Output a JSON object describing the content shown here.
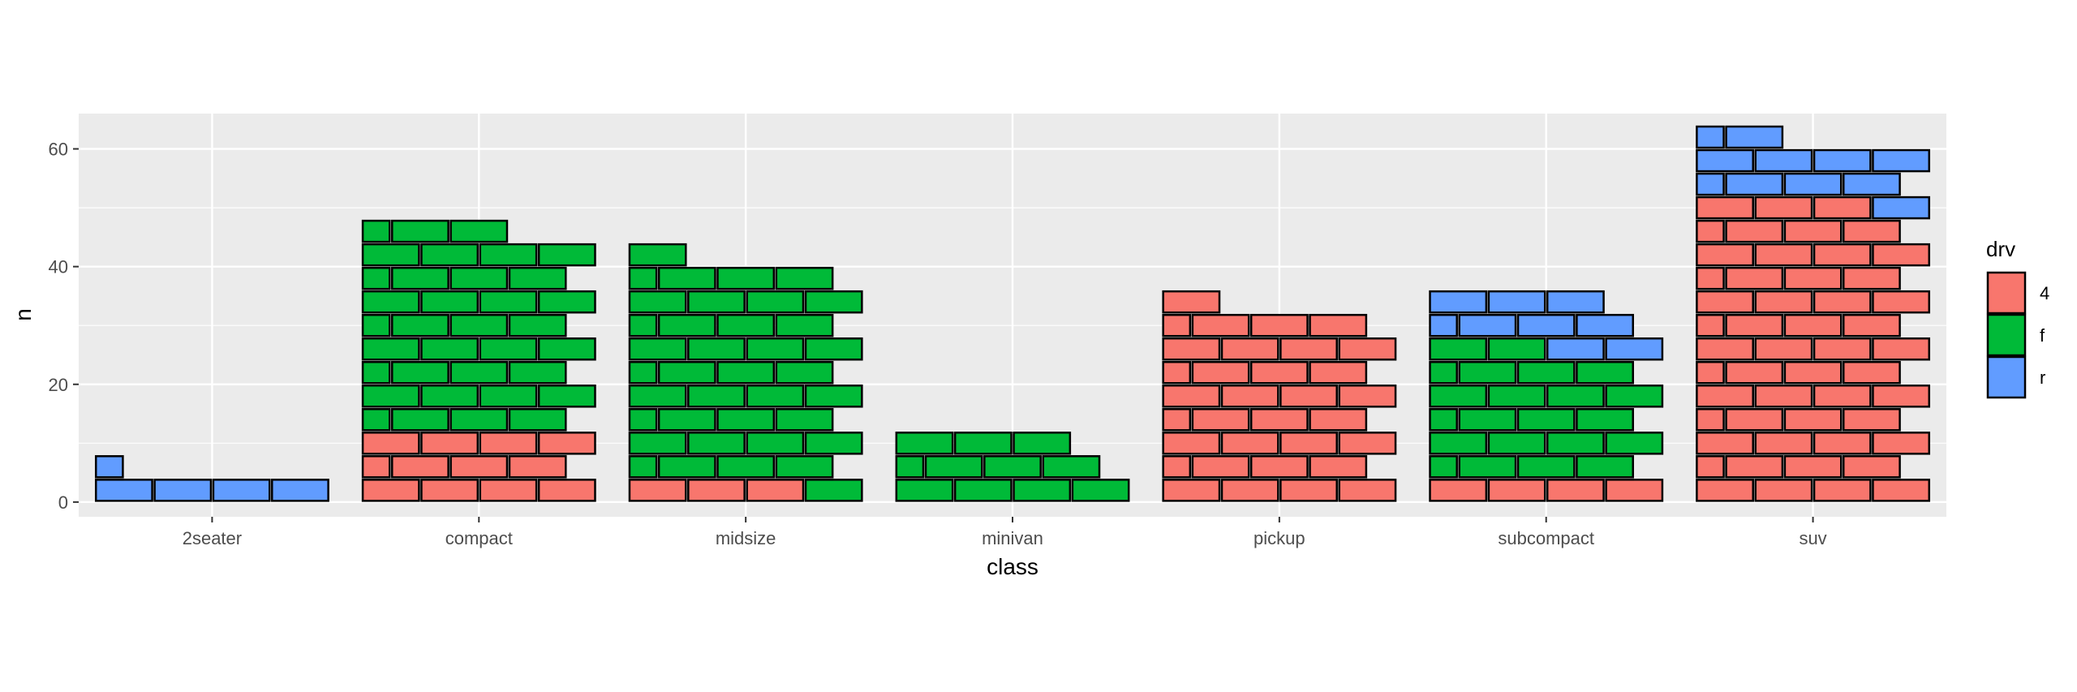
{
  "chart_data": {
    "type": "bar",
    "style": "brick-stacked",
    "categories": [
      "2seater",
      "compact",
      "midsize",
      "minivan",
      "pickup",
      "subcompact",
      "suv"
    ],
    "series": [
      {
        "name": "4",
        "color": "#F8766D",
        "values": [
          0,
          12,
          3,
          0,
          33,
          4,
          51
        ]
      },
      {
        "name": "f",
        "color": "#00BA38",
        "values": [
          0,
          35,
          38,
          11,
          0,
          22,
          0
        ]
      },
      {
        "name": "r",
        "color": "#619CFF",
        "values": [
          5,
          0,
          0,
          0,
          0,
          9,
          11
        ]
      }
    ],
    "xlabel": "class",
    "ylabel": "n",
    "ylim": [
      -2.5,
      66
    ],
    "yticks": [
      0,
      20,
      40,
      60
    ],
    "legend_title": "drv",
    "legend_position": "right",
    "grid": true,
    "panel_background": "#EBEBEB",
    "grid_color": "#FFFFFF"
  }
}
